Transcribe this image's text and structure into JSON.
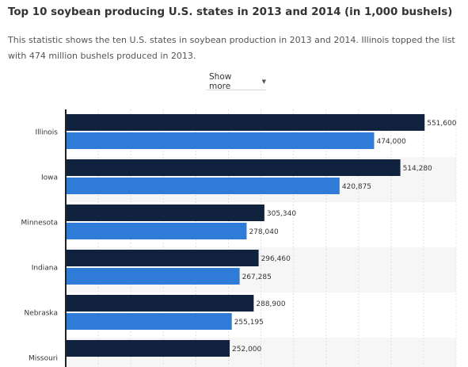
{
  "header": {
    "title": "Top 10 soybean producing U.S. states in 2013 and 2014 (in 1,000 bushels)",
    "description": "This statistic shows the ten U.S. states in soybean production in 2013 and 2014. Illinois topped the list with 474 million bushels produced in 2013.",
    "show_more_label": "Show more"
  },
  "colors": {
    "series_dark": "#11223e",
    "series_blue": "#2f7bd8",
    "band": "#f6f6f6",
    "gridline": "#e1e1e1"
  },
  "chart_data": {
    "type": "bar",
    "orientation": "horizontal",
    "categories": [
      "Illinois",
      "Iowa",
      "Minnesota",
      "Indiana",
      "Nebraska",
      "Missouri"
    ],
    "series": [
      {
        "values": [
          551600,
          514280,
          305340,
          296460,
          288900,
          252000
        ],
        "labels": [
          "551,600",
          "514,280",
          "305,340",
          "296,460",
          "288,900",
          "252,000"
        ]
      },
      {
        "values": [
          474000,
          420875,
          278040,
          267285,
          255195,
          null
        ],
        "labels": [
          "474,000",
          "420,875",
          "278,040",
          "267,285",
          "255,195",
          ""
        ]
      }
    ],
    "xlim": [
      0,
      600000
    ],
    "grid": true,
    "title": "",
    "xlabel": "",
    "ylabel": ""
  }
}
